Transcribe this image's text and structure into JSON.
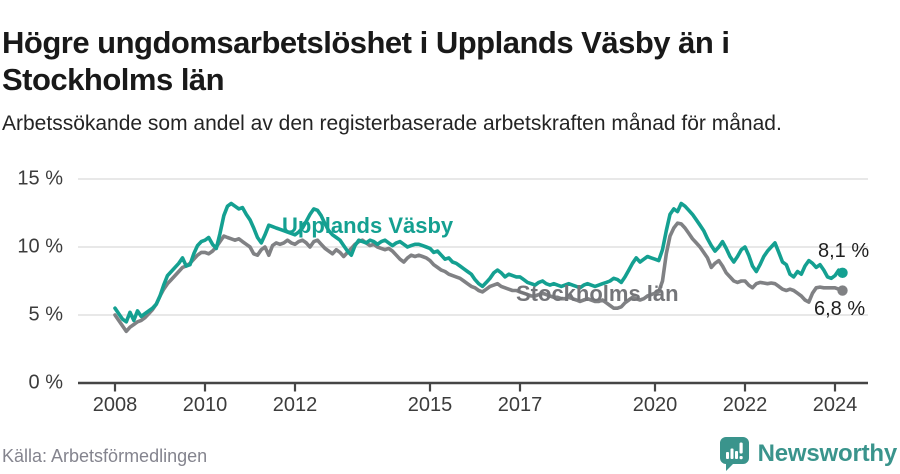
{
  "header": {
    "title": "Högre ungdomsarbetslöshet i Upplands Väsby än i Stockholms län",
    "subtitle": "Arbetssökande som andel av den registerbaserade arbetskraften månad för månad."
  },
  "footer": {
    "source": "Källa: Arbetsförmedlingen",
    "brand": "Newsworthy"
  },
  "colors": {
    "accent_teal": "#14a091",
    "line_gray": "#808184",
    "brand_teal": "#3a948c",
    "gridline": "#dbdbdb",
    "axis": "#454545"
  },
  "chart_data": {
    "type": "line",
    "x_unit": "month",
    "x_start": 2008.0,
    "x_end": 2024.1667,
    "ylim": [
      0,
      15
    ],
    "grid": "horizontal",
    "yticks": [
      {
        "value": 0,
        "label": "0 %"
      },
      {
        "value": 5,
        "label": "5 %"
      },
      {
        "value": 10,
        "label": "10 %"
      },
      {
        "value": 15,
        "label": "15 %"
      }
    ],
    "xticks": [
      {
        "value": 2008,
        "label": "2008"
      },
      {
        "value": 2010,
        "label": "2010"
      },
      {
        "value": 2012,
        "label": "2012"
      },
      {
        "value": 2015,
        "label": "2015"
      },
      {
        "value": 2017,
        "label": "2017"
      },
      {
        "value": 2020,
        "label": "2020"
      },
      {
        "value": 2022,
        "label": "2022"
      },
      {
        "value": 2024,
        "label": "2024"
      }
    ],
    "series": [
      {
        "name": "Upplands Väsby",
        "color": "#14a091",
        "end_label": "8,1 %",
        "end_value": 8.1,
        "values": [
          5.5,
          5.1,
          4.7,
          4.5,
          5.2,
          4.6,
          5.3,
          4.9,
          5.1,
          5.3,
          5.5,
          5.8,
          6.4,
          7.2,
          7.9,
          8.2,
          8.5,
          8.8,
          9.2,
          8.6,
          8.7,
          9.5,
          10.1,
          10.4,
          10.5,
          10.7,
          10.2,
          9.9,
          11.0,
          12.3,
          13.0,
          13.2,
          13.0,
          12.8,
          12.9,
          12.4,
          12.0,
          11.4,
          10.7,
          10.3,
          10.9,
          11.6,
          11.5,
          11.4,
          11.3,
          11.2,
          11.1,
          11.0,
          10.9,
          11.1,
          11.4,
          11.9,
          12.4,
          12.8,
          12.7,
          12.3,
          11.7,
          11.2,
          10.9,
          10.7,
          10.5,
          10.1,
          9.7,
          9.4,
          10.1,
          10.5,
          10.4,
          10.3,
          10.5,
          10.4,
          10.2,
          10.4,
          10.5,
          10.3,
          10.1,
          10.3,
          10.4,
          10.2,
          10.0,
          10.1,
          10.2,
          10.2,
          10.1,
          10.0,
          9.9,
          9.6,
          9.7,
          9.4,
          9.1,
          9.2,
          8.9,
          8.8,
          8.6,
          8.4,
          8.2,
          8.0,
          7.6,
          7.3,
          7.1,
          7.4,
          7.7,
          8.1,
          8.3,
          8.1,
          7.8,
          8.0,
          7.9,
          7.8,
          7.8,
          7.6,
          7.4,
          7.3,
          7.2,
          7.4,
          7.5,
          7.3,
          7.2,
          7.3,
          7.2,
          7.1,
          7.2,
          7.3,
          7.2,
          7.1,
          7.0,
          7.2,
          7.3,
          7.2,
          7.1,
          7.2,
          7.3,
          7.4,
          7.5,
          7.7,
          7.6,
          7.4,
          7.8,
          8.3,
          8.8,
          9.2,
          8.9,
          9.1,
          9.3,
          9.2,
          9.1,
          9.0,
          9.8,
          11.2,
          12.4,
          12.8,
          12.6,
          13.2,
          13.0,
          12.7,
          12.4,
          12.0,
          11.6,
          11.2,
          10.6,
          10.1,
          9.7,
          10.0,
          10.4,
          9.9,
          9.3,
          8.9,
          9.3,
          9.8,
          10.0,
          9.4,
          8.6,
          8.2,
          8.7,
          9.3,
          9.7,
          10.0,
          10.3,
          9.6,
          8.9,
          8.7,
          8.0,
          7.8,
          8.2,
          8.0,
          8.6,
          9.0,
          8.8,
          8.5,
          8.7,
          8.3,
          7.8,
          7.7,
          7.9,
          8.3,
          8.1
        ]
      },
      {
        "name": "Stockholms län",
        "color": "#808184",
        "end_label": "6,8 %",
        "end_value": 6.8,
        "values": [
          5.0,
          4.6,
          4.2,
          3.8,
          4.1,
          4.3,
          4.5,
          4.6,
          4.8,
          5.1,
          5.4,
          5.8,
          6.4,
          6.9,
          7.3,
          7.6,
          7.9,
          8.2,
          8.5,
          8.6,
          8.8,
          9.1,
          9.4,
          9.6,
          9.6,
          9.5,
          9.7,
          10.0,
          10.4,
          10.8,
          10.7,
          10.6,
          10.5,
          10.6,
          10.4,
          10.2,
          10.0,
          9.5,
          9.4,
          9.8,
          10.0,
          9.4,
          10.1,
          10.3,
          10.2,
          10.3,
          10.5,
          10.3,
          10.2,
          10.4,
          10.5,
          10.3,
          10.0,
          10.4,
          10.5,
          10.2,
          9.9,
          9.7,
          9.5,
          9.8,
          9.6,
          9.3,
          9.6,
          9.9,
          10.2,
          10.4,
          10.5,
          10.3,
          10.1,
          10.2,
          10.0,
          9.9,
          9.8,
          9.9,
          9.7,
          9.4,
          9.1,
          8.9,
          9.2,
          9.4,
          9.3,
          9.4,
          9.3,
          9.2,
          9.0,
          8.7,
          8.5,
          8.3,
          8.2,
          8.0,
          7.9,
          7.8,
          7.7,
          7.5,
          7.3,
          7.1,
          7.0,
          6.8,
          6.7,
          6.9,
          7.1,
          7.2,
          7.3,
          7.1,
          7.0,
          6.9,
          6.8,
          6.8,
          6.7,
          6.6,
          6.5,
          6.4,
          6.4,
          6.5,
          6.6,
          6.5,
          6.4,
          6.3,
          6.3,
          6.2,
          6.2,
          6.3,
          6.2,
          6.1,
          6.0,
          6.1,
          6.2,
          6.1,
          6.0,
          6.0,
          6.1,
          5.9,
          5.7,
          5.5,
          5.5,
          5.6,
          5.9,
          6.1,
          6.3,
          6.2,
          6.1,
          6.2,
          6.4,
          6.5,
          6.6,
          6.7,
          7.5,
          9.5,
          10.8,
          11.4,
          11.75,
          11.7,
          11.4,
          11.0,
          10.6,
          10.3,
          10.0,
          9.6,
          9.2,
          8.5,
          8.8,
          9.0,
          8.6,
          8.1,
          7.8,
          7.5,
          7.4,
          7.5,
          7.5,
          7.2,
          7.0,
          7.3,
          7.4,
          7.35,
          7.3,
          7.35,
          7.3,
          7.1,
          6.9,
          6.8,
          6.9,
          6.8,
          6.6,
          6.4,
          6.1,
          5.95,
          6.6,
          7.0,
          7.05,
          7.0,
          7.0,
          7.0,
          7.0,
          6.9,
          6.8
        ]
      }
    ]
  }
}
